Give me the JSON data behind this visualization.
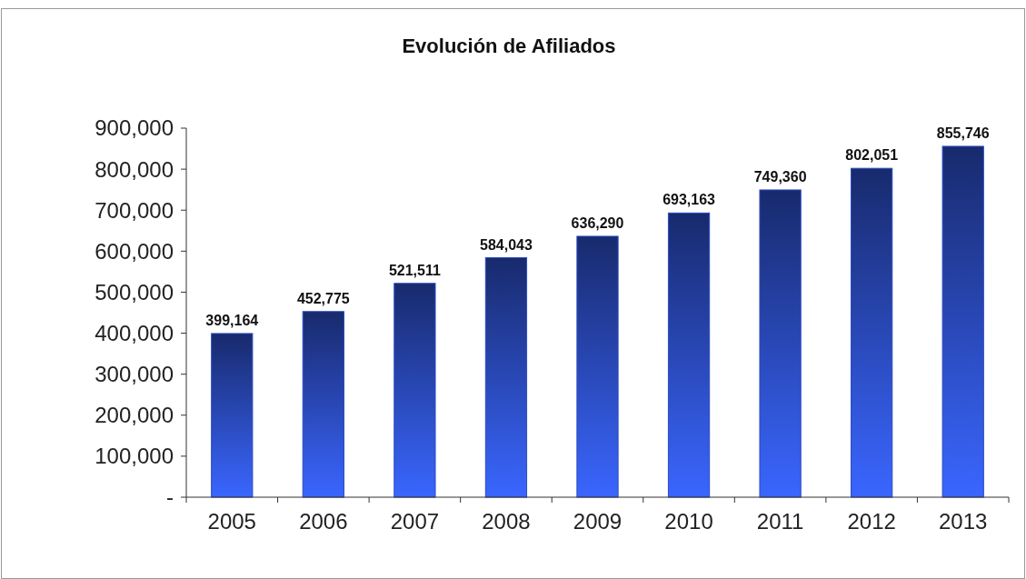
{
  "chart_data": {
    "type": "bar",
    "title": "Evolución de Afiliados",
    "categories": [
      "2005",
      "2006",
      "2007",
      "2008",
      "2009",
      "2010",
      "2011",
      "2012",
      "2013"
    ],
    "values": [
      399164,
      452775,
      521511,
      584043,
      636290,
      693163,
      749360,
      802051,
      855746
    ],
    "color": "#2a4ac0",
    "ylim": [
      0,
      900000
    ],
    "yticks": [
      {
        "value": 0,
        "label": "-"
      },
      {
        "value": 100000,
        "label": "100,000"
      },
      {
        "value": 200000,
        "label": "200,000"
      },
      {
        "value": 300000,
        "label": "300,000"
      },
      {
        "value": 400000,
        "label": "400,000"
      },
      {
        "value": 500000,
        "label": "500,000"
      },
      {
        "value": 600000,
        "label": "600,000"
      },
      {
        "value": 700000,
        "label": "700,000"
      },
      {
        "value": 800000,
        "label": "800,000"
      },
      {
        "value": 900000,
        "label": "900,000"
      }
    ],
    "value_labels": [
      "399,164",
      "452,775",
      "521,511",
      "584,043",
      "636,290",
      "693,163",
      "749,360",
      "802,051",
      "855,746"
    ],
    "grid": false
  }
}
